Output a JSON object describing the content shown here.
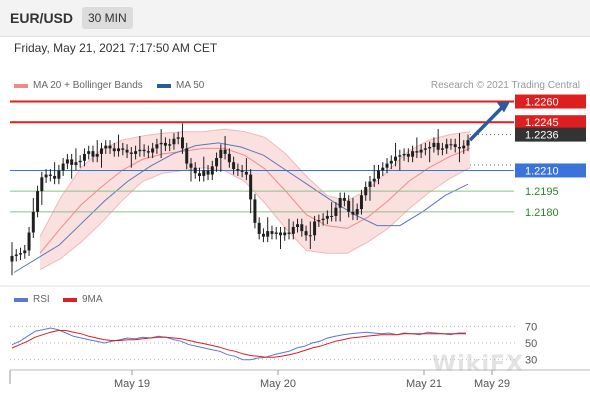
{
  "header": {
    "symbol": "EUR/USD",
    "timeframe": "30 MIN"
  },
  "timestamp": "Friday, May 21, 2021 7:17:50 AM CET",
  "legend": {
    "bollinger": "MA 20 + Bollinger Bands",
    "ma50": "MA 50",
    "copyright": "Research © 2021 Trading Central"
  },
  "rsi_legend": {
    "rsi": "RSI",
    "ma": "9MA"
  },
  "watermark": "WikiFX",
  "colors": {
    "candle": "#1f1f1f",
    "bollinger": "#ee8a8a",
    "bollinger_fill": "#fbe0e0",
    "ma50": "#5a78b8",
    "resistance": "#dd1f1f",
    "support": "#3a73d9",
    "target": "#8cc08c",
    "arrow": "#2c5a9c",
    "rsi": "#5a78d0",
    "rsi_ma": "#dd1f1f"
  },
  "chart_data": [
    {
      "type": "candlestick",
      "title": "EUR/USD 30 MIN",
      "x_ticks": [
        "May 19",
        "May 20",
        "May 21",
        "May 29"
      ],
      "ylim": [
        1.2132,
        1.2264
      ],
      "close_series": [
        1.2148,
        1.2149,
        1.215,
        1.2152,
        1.2165,
        1.218,
        1.2195,
        1.2205,
        1.2207,
        1.2206,
        1.2204,
        1.221,
        1.2215,
        1.2218,
        1.2214,
        1.2216,
        1.2217,
        1.2222,
        1.2224,
        1.222,
        1.2222,
        1.2226,
        1.2228,
        1.2226,
        1.2224,
        1.2226,
        1.2225,
        1.2223,
        1.2222,
        1.2224,
        1.2225,
        1.2224,
        1.2223,
        1.2226,
        1.2229,
        1.223,
        1.2228,
        1.2229,
        1.2233,
        1.2234,
        1.2226,
        1.2215,
        1.2212,
        1.2208,
        1.2206,
        1.221,
        1.2207,
        1.2213,
        1.2219,
        1.2225,
        1.2222,
        1.2216,
        1.2211,
        1.221,
        1.2209,
        1.2207,
        1.2189,
        1.2172,
        1.2164,
        1.2162,
        1.2166,
        1.2164,
        1.2165,
        1.2163,
        1.2165,
        1.2164,
        1.2169,
        1.2171,
        1.2166,
        1.2163,
        1.2163,
        1.2173,
        1.2174,
        1.2175,
        1.2177,
        1.2177,
        1.2183,
        1.219,
        1.2188,
        1.218,
        1.2178,
        1.2182,
        1.2192,
        1.2198,
        1.2202,
        1.2204,
        1.221,
        1.2212,
        1.2215,
        1.2217,
        1.222,
        1.2221,
        1.2222,
        1.222,
        1.2224,
        1.2223,
        1.2225,
        1.2226,
        1.2227,
        1.223,
        1.2225,
        1.2226,
        1.2229,
        1.2229,
        1.2227,
        1.2226,
        1.2228,
        1.2232
      ],
      "levels": [
        {
          "label": "1.2260",
          "value": 1.226,
          "color": "#dd1f1f",
          "style": "solid"
        },
        {
          "label": "1.2245",
          "value": 1.2245,
          "color": "#dd1f1f",
          "style": "solid"
        },
        {
          "label": "1.2236",
          "value": 1.2236,
          "color": "#333333",
          "style": "dotted"
        },
        {
          "label": "1.2210",
          "value": 1.221,
          "color": "#3a73d9",
          "style": "solid"
        },
        {
          "label": "1.2195",
          "value": 1.2195,
          "color": "#8cc08c",
          "style": "solid"
        },
        {
          "label": "1.2180",
          "value": 1.218,
          "color": "#8cc08c",
          "style": "solid"
        }
      ],
      "ma50": [
        1.2136,
        1.2146,
        1.2156,
        1.2172,
        1.2188,
        1.2202,
        1.2213,
        1.2222,
        1.2228,
        1.223,
        1.2227,
        1.2221,
        1.221,
        1.2199,
        1.2188,
        1.2178,
        1.217,
        1.217,
        1.218,
        1.2192,
        1.22
      ],
      "bollinger": {
        "mid": [
          1.215,
          1.2168,
          1.2185,
          1.2198,
          1.221,
          1.2218,
          1.2222,
          1.2224,
          1.2226,
          1.2226,
          1.2221,
          1.2211,
          1.2195,
          1.2178,
          1.217,
          1.2168,
          1.2176,
          1.2188,
          1.2202,
          1.2212,
          1.222,
          1.2226
        ],
        "upper": [
          1.2162,
          1.219,
          1.2212,
          1.2225,
          1.2232,
          1.2235,
          1.2237,
          1.2238,
          1.2238,
          1.224,
          1.2238,
          1.2234,
          1.2222,
          1.2206,
          1.2192,
          1.2188,
          1.2196,
          1.221,
          1.2224,
          1.2232,
          1.2236,
          1.2238
        ],
        "lower": [
          1.2138,
          1.2146,
          1.2158,
          1.2172,
          1.2188,
          1.2202,
          1.2208,
          1.221,
          1.2212,
          1.221,
          1.2202,
          1.2186,
          1.2168,
          1.2152,
          1.215,
          1.215,
          1.2158,
          1.2168,
          1.2182,
          1.2194,
          1.2204,
          1.2212
        ]
      },
      "forecast": {
        "from": 1.2232,
        "to": 1.226
      }
    },
    {
      "type": "line",
      "title": "RSI",
      "y_ticks": [
        "70",
        "50",
        "30"
      ],
      "ylim": [
        20,
        80
      ],
      "series": [
        {
          "name": "RSI",
          "values": [
            48,
            52,
            58,
            64,
            66,
            68,
            66,
            62,
            58,
            56,
            54,
            52,
            50,
            52,
            54,
            56,
            55,
            57,
            56,
            58,
            57,
            54,
            52,
            48,
            46,
            44,
            42,
            40,
            36,
            34,
            30,
            30,
            32,
            33,
            36,
            38,
            40,
            44,
            46,
            50,
            52,
            56,
            58,
            60,
            61,
            62,
            63,
            62,
            61,
            62,
            60,
            62,
            61,
            60,
            63,
            62,
            61,
            60,
            62,
            62
          ]
        },
        {
          "name": "9MA",
          "values": [
            44,
            48,
            52,
            57,
            60,
            63,
            65,
            65,
            63,
            61,
            58,
            56,
            54,
            53,
            53,
            54,
            54,
            55,
            56,
            57,
            57,
            56,
            55,
            53,
            51,
            49,
            47,
            45,
            42,
            40,
            37,
            35,
            34,
            33,
            33,
            34,
            36,
            38,
            41,
            44,
            46,
            49,
            52,
            54,
            56,
            57,
            58,
            59,
            60,
            60,
            60,
            61,
            61,
            61,
            61,
            61,
            61,
            61,
            61,
            61
          ]
        }
      ]
    }
  ]
}
